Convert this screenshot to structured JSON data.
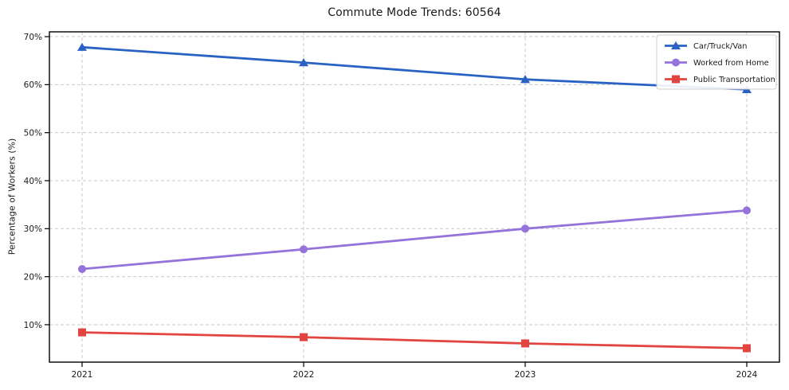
{
  "page": {
    "background": "#ffffff"
  },
  "chart_data": {
    "type": "line",
    "title": "Commute Mode Trends: 60564",
    "xlabel": "",
    "ylabel": "Percentage of Workers (%)",
    "categories": [
      "2021",
      "2022",
      "2023",
      "2024"
    ],
    "series": [
      {
        "name": "Car/Truck/Van",
        "marker": "triangle",
        "color": "#2a62c4",
        "values": [
          67.8,
          64.6,
          61.1,
          59.0
        ]
      },
      {
        "name": "Worked from Home",
        "marker": "circle",
        "color": "#9473db",
        "values": [
          21.6,
          25.7,
          30.0,
          33.8
        ]
      },
      {
        "name": "Public Transportation",
        "marker": "square",
        "color": "#e2443f",
        "values": [
          8.4,
          7.4,
          6.1,
          5.1
        ]
      }
    ],
    "ylim": [
      2.2,
      71.0
    ],
    "yticks": [
      10,
      20,
      30,
      40,
      50,
      60,
      70
    ],
    "ytick_suffix": "%",
    "grid": true,
    "grid_style": "dashed",
    "legend": {
      "position": "top-right"
    },
    "colors": {
      "grid": "#c9c9c9",
      "axis": "#000000",
      "text": "#1a1a1a",
      "legend_border": "#cccccc",
      "legend_bg": "#ffffff"
    }
  }
}
